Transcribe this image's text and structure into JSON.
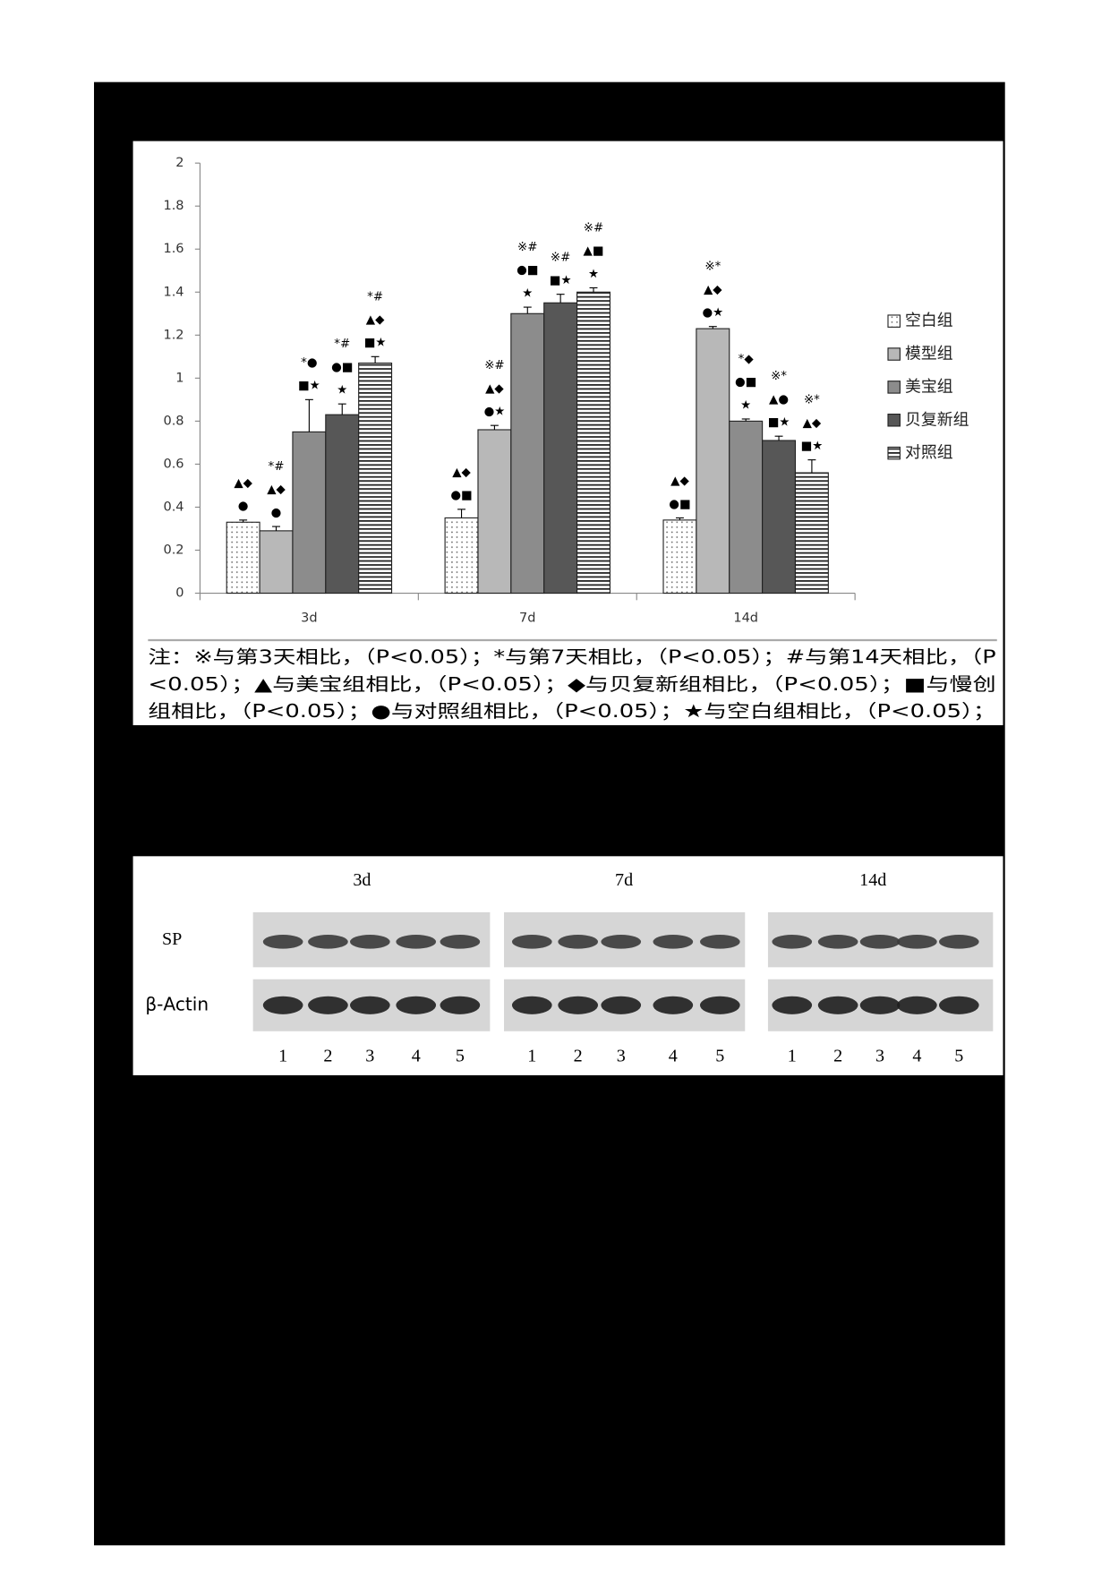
{
  "chart_data": {
    "type": "bar",
    "categories": [
      "3d",
      "7d",
      "14d"
    ],
    "ylim": [
      0,
      2
    ],
    "yticks": [
      0,
      0.2,
      0.4,
      0.6,
      0.8,
      1,
      1.2,
      1.4,
      1.6,
      1.8,
      2
    ],
    "grid": false,
    "legend": "right",
    "series": [
      {
        "name": "空白组",
        "color": "#ffffff",
        "pattern": "dots",
        "values": [
          0.33,
          0.35,
          0.34
        ],
        "errors": [
          0.01,
          0.04,
          0.01
        ],
        "significance": [
          [
            "▲◆",
            "●"
          ],
          [
            "▲◆",
            "●■"
          ],
          [
            "▲◆",
            "●■"
          ]
        ]
      },
      {
        "name": "模型组",
        "color": "#b8b8b8",
        "pattern": "solid",
        "values": [
          0.29,
          0.76,
          1.23
        ],
        "errors": [
          0.02,
          0.02,
          0.01
        ],
        "significance": [
          [
            "*#",
            "▲◆",
            "●"
          ],
          [
            "※#",
            "▲◆",
            "●★"
          ],
          [
            "※*",
            "▲◆",
            "●★"
          ]
        ]
      },
      {
        "name": "美宝组",
        "color": "#8c8c8c",
        "pattern": "solid",
        "values": [
          0.75,
          1.3,
          0.8
        ],
        "errors": [
          0.15,
          0.03,
          0.01
        ],
        "significance": [
          [
            "*●",
            "■★"
          ],
          [
            "※#",
            "●■",
            "★"
          ],
          [
            "*◆",
            "●■",
            "★"
          ]
        ]
      },
      {
        "name": "贝复新组",
        "color": "#575757",
        "pattern": "solid",
        "values": [
          0.83,
          1.35,
          0.71
        ],
        "errors": [
          0.05,
          0.04,
          0.02
        ],
        "significance": [
          [
            "*#",
            "●■",
            "★"
          ],
          [
            "※#",
            "■★"
          ],
          [
            "※*",
            "▲●",
            "■★"
          ]
        ]
      },
      {
        "name": "对照组",
        "color": "#ffffff",
        "pattern": "stripes",
        "values": [
          1.07,
          1.4,
          0.56
        ],
        "errors": [
          0.03,
          0.02,
          0.06
        ],
        "significance": [
          [
            "*#",
            "▲◆",
            "■★"
          ],
          [
            "※#",
            "▲■",
            "★"
          ],
          [
            "※*",
            "▲◆",
            "■★"
          ]
        ]
      }
    ],
    "note": [
      "注：※与第3天相比，（P<0.05）；*与第7天相比，（P<0.05）；#与第14天相比，（P",
      "<0.05）；▲与美宝组相比，（P<0.05）；◆与贝复新组相比，（P<0.05）；■与慢创",
      "组相比，（P<0.05）；●与对照组相比，（P<0.05）；★与空白组相比，（P<0.05）；"
    ]
  },
  "blot": {
    "rows": [
      "SP",
      "β-Actin"
    ],
    "panels": [
      {
        "label": "3d",
        "lanes": [
          "1",
          "2",
          "3",
          "4",
          "5"
        ]
      },
      {
        "label": "7d",
        "lanes": [
          "1",
          "2",
          "3",
          "4",
          "5"
        ]
      },
      {
        "label": "14d",
        "lanes": [
          "1",
          "2",
          "3",
          "4",
          "5"
        ]
      }
    ]
  }
}
